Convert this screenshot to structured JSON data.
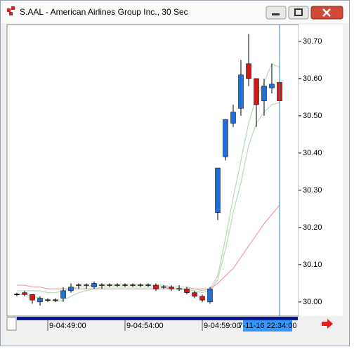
{
  "window_title": "S.AAL - American Airlines Group Inc., 30 Sec",
  "chart_data": {
    "type": "candlestick",
    "up_color": "#1f6fd6",
    "down_color": "#d01818",
    "doji_color": "#000000",
    "open": [
      30.02,
      30.025,
      30.02,
      30.0,
      30.005,
      30.005,
      30.01,
      30.03,
      30.045,
      30.045,
      30.04,
      30.045,
      30.045,
      30.045,
      30.045,
      30.045,
      30.045,
      30.045,
      30.045,
      30.04,
      30.04,
      30.035,
      30.035,
      30.025,
      30.015,
      30.0,
      30.24,
      30.39,
      30.48,
      30.52,
      30.64,
      30.6,
      30.54,
      30.575,
      30.59
    ],
    "high": [
      30.025,
      30.03,
      30.02,
      30.015,
      30.01,
      30.01,
      30.04,
      30.05,
      30.05,
      30.05,
      30.055,
      30.05,
      30.05,
      30.05,
      30.05,
      30.05,
      30.05,
      30.05,
      30.05,
      30.045,
      30.045,
      30.045,
      30.04,
      30.03,
      30.02,
      30.04,
      30.36,
      30.49,
      30.53,
      30.65,
      30.72,
      30.6,
      30.6,
      30.64,
      30.59
    ],
    "low": [
      30.015,
      30.015,
      29.995,
      29.99,
      30.0,
      30.0,
      30.0,
      30.025,
      30.035,
      30.035,
      30.035,
      30.035,
      30.04,
      30.04,
      30.04,
      30.04,
      30.04,
      30.04,
      30.03,
      30.035,
      30.03,
      30.03,
      30.02,
      30.01,
      30.0,
      29.995,
      30.22,
      30.38,
      30.47,
      30.5,
      30.58,
      30.47,
      30.5,
      30.56,
      30.53
    ],
    "close": [
      30.02,
      30.02,
      30.005,
      30.01,
      30.005,
      30.005,
      30.03,
      30.04,
      30.045,
      30.045,
      30.05,
      30.045,
      30.045,
      30.045,
      30.045,
      30.045,
      30.045,
      30.045,
      30.035,
      30.04,
      30.035,
      30.035,
      30.025,
      30.015,
      30.005,
      30.035,
      30.36,
      30.49,
      30.51,
      30.61,
      30.6,
      30.53,
      30.58,
      30.585,
      30.54
    ],
    "series": [
      {
        "color": "#bcdcbc",
        "values": [
          30.03,
          30.03,
          30.03,
          30.03,
          30.025,
          30.025,
          30.03,
          30.035,
          30.04,
          30.04,
          30.045,
          30.045,
          30.045,
          30.045,
          30.045,
          30.045,
          30.045,
          30.045,
          30.045,
          30.045,
          30.04,
          30.04,
          30.04,
          30.035,
          30.03,
          30.035,
          30.07,
          30.17,
          30.28,
          30.38,
          30.48,
          30.55,
          30.59,
          30.64,
          30.63
        ]
      },
      {
        "color": "#bcdcbc",
        "values": [
          30.02,
          30.02,
          30.015,
          30.01,
          30.005,
          30.0,
          30.005,
          30.015,
          30.025,
          30.03,
          30.035,
          30.04,
          30.04,
          30.04,
          30.04,
          30.04,
          30.04,
          30.04,
          30.04,
          30.04,
          30.035,
          30.035,
          30.03,
          30.03,
          30.025,
          30.03,
          30.06,
          30.14,
          30.24,
          30.32,
          30.42,
          30.48,
          30.51,
          30.53,
          30.535
        ]
      },
      {
        "color": "#f0a0b8",
        "values": [
          30.045,
          30.045,
          30.04,
          30.04,
          30.035,
          30.035,
          30.035,
          30.035,
          30.035,
          30.035,
          30.035,
          30.035,
          30.035,
          30.035,
          30.035,
          30.035,
          30.035,
          30.035,
          30.035,
          30.035,
          30.035,
          30.035,
          30.035,
          30.035,
          30.035,
          30.035,
          30.05,
          30.07,
          30.09,
          30.12,
          30.15,
          30.18,
          30.21,
          30.235,
          30.26
        ]
      }
    ],
    "ylim": [
      29.962,
      30.745
    ],
    "yticks": [
      {
        "value": 30.0,
        "label": "30.00"
      },
      {
        "value": 30.1,
        "label": "30.10"
      },
      {
        "value": 30.2,
        "label": "30.20"
      },
      {
        "value": 30.3,
        "label": "30.30"
      },
      {
        "value": 30.4,
        "label": "30.40"
      },
      {
        "value": 30.5,
        "label": "30.50"
      },
      {
        "value": 30.6,
        "label": "30.60"
      },
      {
        "value": 30.7,
        "label": "30.70"
      }
    ],
    "xticks": [
      {
        "value": 4,
        "label": "9-04:49:00"
      },
      {
        "value": 14,
        "label": "9-04:54:00"
      },
      {
        "value": 24,
        "label": "9-04:59:00"
      }
    ],
    "cursor_label": "7-11-16 22:34:00"
  }
}
